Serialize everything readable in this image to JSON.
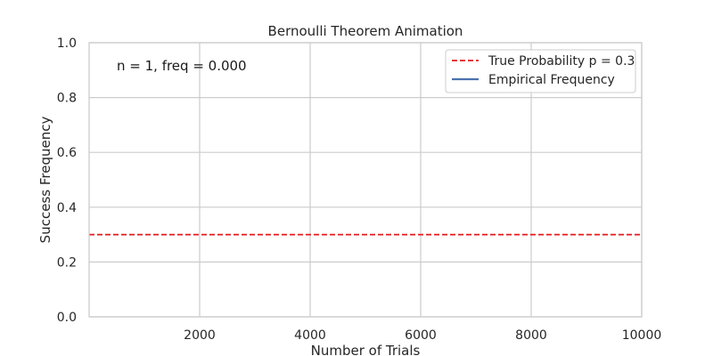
{
  "chart_data": {
    "type": "line",
    "title": "Bernoulli Theorem Animation",
    "xlabel": "Number of Trials",
    "ylabel": "Success Frequency",
    "xlim": [
      0,
      10000
    ],
    "ylim": [
      0.0,
      1.0
    ],
    "xticks": [
      2000,
      4000,
      6000,
      8000,
      10000
    ],
    "xtick_labels": [
      "2000",
      "4000",
      "6000",
      "8000",
      "10000"
    ],
    "yticks": [
      0.0,
      0.2,
      0.4,
      0.6,
      0.8,
      1.0
    ],
    "ytick_labels": [
      "0.0",
      "0.2",
      "0.4",
      "0.6",
      "0.8",
      "1.0"
    ],
    "grid": true,
    "legend_position": "top-right",
    "annotation": "n = 1, freq = 0.000",
    "series": [
      {
        "name": "True Probability p = 0.3",
        "style": "dashed",
        "color": "#e31a1c",
        "x": [
          0,
          10000
        ],
        "y": [
          0.3,
          0.3
        ]
      },
      {
        "name": "Empirical Frequency",
        "style": "solid",
        "color": "#4c72b0",
        "x": [
          1
        ],
        "y": [
          0.0
        ]
      }
    ]
  }
}
